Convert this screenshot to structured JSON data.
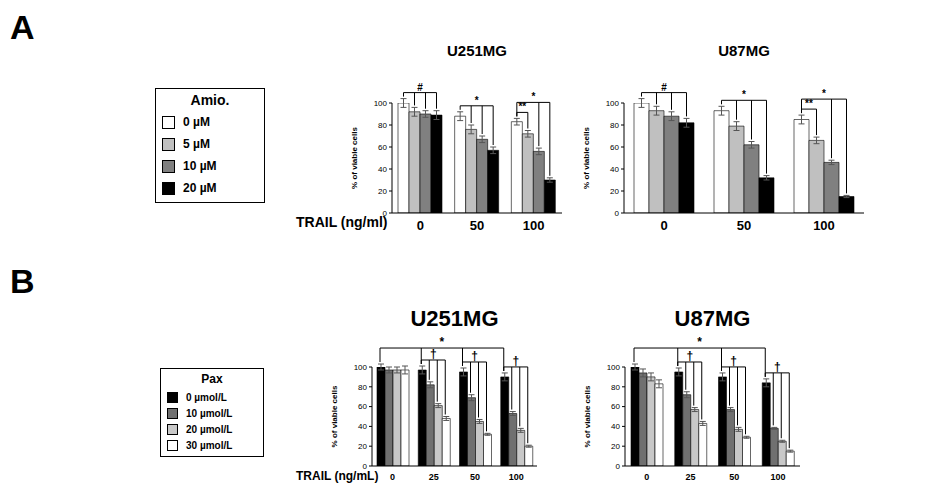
{
  "panel_labels": [
    "A",
    "B"
  ],
  "legends": [
    {
      "title": "Amio."
    },
    {
      "title": "Pax"
    }
  ],
  "chart_data": [
    {
      "type": "bar",
      "title": "U251MG",
      "x_label": "TRAIL (ng/ml)",
      "y_label": "% of viable cells",
      "categories": [
        "0",
        "50",
        "100"
      ],
      "ylim": [
        0,
        100
      ],
      "yticks": [
        0,
        20,
        40,
        60,
        80,
        100
      ],
      "series": [
        {
          "name": "0 µM",
          "color": "#ffffff",
          "values": [
            100,
            88,
            83
          ],
          "errors": [
            4,
            4,
            3
          ]
        },
        {
          "name": "5 µM",
          "color": "#c0c0c0",
          "values": [
            92,
            76,
            72
          ],
          "errors": [
            4,
            4,
            3
          ]
        },
        {
          "name": "10 µM",
          "color": "#808080",
          "values": [
            90,
            67,
            56
          ],
          "errors": [
            3,
            3,
            3
          ]
        },
        {
          "name": "20 µM",
          "color": "#000000",
          "values": [
            89,
            57,
            30
          ],
          "errors": [
            4,
            3,
            2
          ]
        }
      ],
      "annotations": [
        {
          "text": "#",
          "from": {
            "category": "0",
            "series": "0 µM"
          },
          "to": [
            {
              "category": "0",
              "series": "5 µM"
            },
            {
              "category": "0",
              "series": "10 µM"
            },
            {
              "category": "0",
              "series": "20 µM"
            }
          ]
        },
        {
          "text": "*",
          "from": {
            "category": "50",
            "series": "0 µM"
          },
          "to": [
            {
              "category": "50",
              "series": "5 µM"
            },
            {
              "category": "50",
              "series": "10 µM"
            },
            {
              "category": "50",
              "series": "20 µM"
            }
          ]
        },
        {
          "text": "**",
          "from": {
            "category": "100",
            "series": "0 µM"
          },
          "to": [
            {
              "category": "100",
              "series": "5 µM"
            }
          ]
        },
        {
          "text": "*",
          "from": {
            "category": "100",
            "series": "0 µM"
          },
          "to": [
            {
              "category": "100",
              "series": "10 µM"
            },
            {
              "category": "100",
              "series": "20 µM"
            }
          ]
        }
      ]
    },
    {
      "type": "bar",
      "title": "U87MG",
      "y_label": "% of viable cells",
      "categories": [
        "0",
        "50",
        "100"
      ],
      "ylim": [
        0,
        100
      ],
      "yticks": [
        0,
        20,
        40,
        60,
        80,
        100
      ],
      "series": [
        {
          "name": "0 µM",
          "color": "#ffffff",
          "values": [
            100,
            93,
            85
          ],
          "errors": [
            4,
            4,
            4
          ]
        },
        {
          "name": "5 µM",
          "color": "#c0c0c0",
          "values": [
            93,
            79,
            66
          ],
          "errors": [
            4,
            4,
            3
          ]
        },
        {
          "name": "10 µM",
          "color": "#808080",
          "values": [
            88,
            62,
            46
          ],
          "errors": [
            4,
            3,
            2
          ]
        },
        {
          "name": "20 µM",
          "color": "#000000",
          "values": [
            82,
            32,
            15
          ],
          "errors": [
            4,
            2,
            1
          ]
        }
      ],
      "annotations": [
        {
          "text": "#",
          "from": {
            "category": "0",
            "series": "0 µM"
          },
          "to": [
            {
              "category": "0",
              "series": "5 µM"
            },
            {
              "category": "0",
              "series": "10 µM"
            },
            {
              "category": "0",
              "series": "20 µM"
            }
          ]
        },
        {
          "text": "*",
          "from": {
            "category": "50",
            "series": "0 µM"
          },
          "to": [
            {
              "category": "50",
              "series": "5 µM"
            },
            {
              "category": "50",
              "series": "10 µM"
            },
            {
              "category": "50",
              "series": "20 µM"
            }
          ]
        },
        {
          "text": "**",
          "from": {
            "category": "100",
            "series": "0 µM"
          },
          "to": [
            {
              "category": "100",
              "series": "5 µM"
            }
          ]
        },
        {
          "text": "*",
          "from": {
            "category": "100",
            "series": "0 µM"
          },
          "to": [
            {
              "category": "100",
              "series": "10 µM"
            },
            {
              "category": "100",
              "series": "20 µM"
            }
          ]
        }
      ]
    },
    {
      "type": "bar",
      "title": "U251MG",
      "x_label": "TRAIL (ng/mL)",
      "y_label": "% of viable cells",
      "categories": [
        "0",
        "25",
        "50",
        "100"
      ],
      "ylim": [
        0,
        100
      ],
      "yticks": [
        0,
        20,
        40,
        60,
        80,
        100
      ],
      "series": [
        {
          "name": "0 µmol/L",
          "color": "#000000",
          "values": [
            100,
            97,
            95,
            90
          ],
          "errors": [
            3,
            4,
            4,
            4
          ]
        },
        {
          "name": "10 µmol/L",
          "color": "#707070",
          "values": [
            97,
            82,
            69,
            53
          ],
          "errors": [
            3,
            3,
            3,
            2
          ]
        },
        {
          "name": "20 µmol/L",
          "color": "#c8c8c8",
          "values": [
            97,
            61,
            45,
            36
          ],
          "errors": [
            3,
            2,
            2,
            2
          ]
        },
        {
          "name": "30 µmol/L",
          "color": "#ffffff",
          "values": [
            97,
            48,
            32,
            20
          ],
          "errors": [
            4,
            2,
            1,
            1
          ]
        }
      ],
      "annotations": [
        {
          "text": "†",
          "from": {
            "category": "25",
            "series": "0 µmol/L"
          },
          "to": [
            {
              "category": "25",
              "series": "10 µmol/L"
            },
            {
              "category": "25",
              "series": "20 µmol/L"
            },
            {
              "category": "25",
              "series": "30 µmol/L"
            }
          ]
        },
        {
          "text": "†",
          "from": {
            "category": "50",
            "series": "0 µmol/L"
          },
          "to": [
            {
              "category": "50",
              "series": "10 µmol/L"
            },
            {
              "category": "50",
              "series": "20 µmol/L"
            },
            {
              "category": "50",
              "series": "30 µmol/L"
            }
          ]
        },
        {
          "text": "†",
          "from": {
            "category": "100",
            "series": "0 µmol/L"
          },
          "to": [
            {
              "category": "100",
              "series": "10 µmol/L"
            },
            {
              "category": "100",
              "series": "20 µmol/L"
            },
            {
              "category": "100",
              "series": "30 µmol/L"
            }
          ]
        },
        {
          "text": "*",
          "from": {
            "category": "0",
            "series": "0 µmol/L"
          },
          "to": [
            {
              "category": "25",
              "series": "0 µmol/L"
            },
            {
              "category": "50",
              "series": "0 µmol/L"
            },
            {
              "category": "100",
              "series": "0 µmol/L"
            }
          ]
        }
      ]
    },
    {
      "type": "bar",
      "title": "U87MG",
      "y_label": "% of viable cells",
      "categories": [
        "0",
        "25",
        "50",
        "100"
      ],
      "ylim": [
        0,
        100
      ],
      "yticks": [
        0,
        20,
        40,
        60,
        80,
        100
      ],
      "series": [
        {
          "name": "0 µmol/L",
          "color": "#000000",
          "values": [
            100,
            95,
            90,
            84
          ],
          "errors": [
            3,
            4,
            4,
            4
          ]
        },
        {
          "name": "10 µmol/L",
          "color": "#707070",
          "values": [
            94,
            72,
            57,
            38
          ],
          "errors": [
            4,
            3,
            2,
            1
          ]
        },
        {
          "name": "20 µmol/L",
          "color": "#c8c8c8",
          "values": [
            90,
            57,
            37,
            25
          ],
          "errors": [
            4,
            2,
            2,
            1
          ]
        },
        {
          "name": "30 µmol/L",
          "color": "#ffffff",
          "values": [
            83,
            43,
            29,
            15
          ],
          "errors": [
            4,
            2,
            1,
            1
          ]
        }
      ],
      "annotations": [
        {
          "text": "†",
          "from": {
            "category": "25",
            "series": "0 µmol/L"
          },
          "to": [
            {
              "category": "25",
              "series": "10 µmol/L"
            },
            {
              "category": "25",
              "series": "20 µmol/L"
            },
            {
              "category": "25",
              "series": "30 µmol/L"
            }
          ]
        },
        {
          "text": "†",
          "from": {
            "category": "50",
            "series": "0 µmol/L"
          },
          "to": [
            {
              "category": "50",
              "series": "10 µmol/L"
            },
            {
              "category": "50",
              "series": "20 µmol/L"
            },
            {
              "category": "50",
              "series": "30 µmol/L"
            }
          ]
        },
        {
          "text": "†",
          "from": {
            "category": "100",
            "series": "0 µmol/L"
          },
          "to": [
            {
              "category": "100",
              "series": "10 µmol/L"
            },
            {
              "category": "100",
              "series": "20 µmol/L"
            },
            {
              "category": "100",
              "series": "30 µmol/L"
            }
          ]
        },
        {
          "text": "*",
          "from": {
            "category": "0",
            "series": "0 µmol/L"
          },
          "to": [
            {
              "category": "25",
              "series": "0 µmol/L"
            },
            {
              "category": "50",
              "series": "0 µmol/L"
            },
            {
              "category": "100",
              "series": "0 µmol/L"
            }
          ]
        }
      ]
    }
  ]
}
